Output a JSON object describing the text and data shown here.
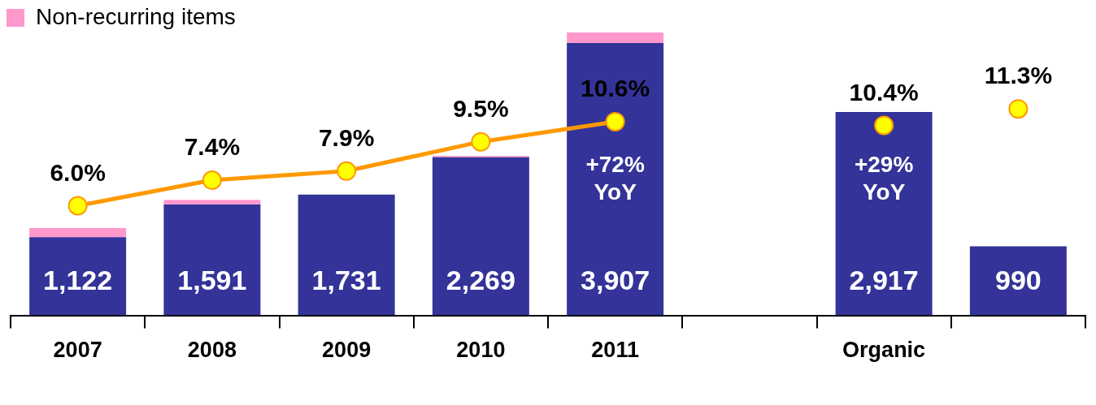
{
  "chart_data": {
    "type": "bar",
    "stacked": true,
    "categories": [
      "2007",
      "2008",
      "2009",
      "2010",
      "2011",
      null,
      "Organic",
      null
    ],
    "series": [
      {
        "color": "#333399",
        "values": [
          1122,
          1591,
          1731,
          2269,
          3907,
          null,
          2917,
          990
        ],
        "value_labels": [
          "1,122",
          "1,591",
          "1,731",
          "2,269",
          "3,907",
          null,
          "2,917",
          "990"
        ]
      },
      {
        "name": "Non-recurring items",
        "color": "#ff99cc",
        "values": [
          130,
          65,
          0,
          20,
          150,
          null,
          null,
          null
        ]
      },
      {
        "type": "line",
        "axis": "y2",
        "color": "#ff9900",
        "marker": "circle",
        "values": [
          6.0,
          7.4,
          7.9,
          9.5,
          10.6,
          null,
          null,
          null
        ],
        "value_labels": [
          "6.0%",
          "7.4%",
          "7.9%",
          "9.5%",
          "10.6%",
          null,
          null,
          null
        ]
      },
      {
        "type": "scatter",
        "axis": "y2",
        "color": "#ffff00",
        "marker": "circle",
        "values": [
          null,
          null,
          null,
          null,
          null,
          null,
          10.4,
          11.3
        ],
        "value_labels": [
          null,
          null,
          null,
          null,
          null,
          null,
          "10.4%",
          "11.3%"
        ]
      }
    ],
    "annotations": [
      "+72% YoY",
      "+29% YoY"
    ],
    "legend": "top left",
    "grid": false
  }
}
